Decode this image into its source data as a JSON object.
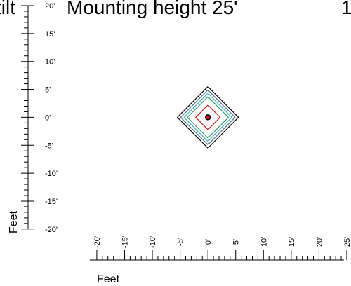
{
  "chart_data": {
    "type": "contour",
    "title_fragments": [
      "tilt",
      "Mounting height 25'",
      "1"
    ],
    "xlabel": "Feet",
    "ylabel": "Feet",
    "xlim": [
      -21,
      24.5
    ],
    "ylim": [
      -20.4,
      20.5
    ],
    "xticks": [
      {
        "value": -20,
        "label": "-20'"
      },
      {
        "value": -15,
        "label": "-15'"
      },
      {
        "value": -10,
        "label": "-10'"
      },
      {
        "value": -5,
        "label": "-5'"
      },
      {
        "value": 0,
        "label": "0'"
      },
      {
        "value": 5,
        "label": "5'"
      },
      {
        "value": 10,
        "label": "10'"
      },
      {
        "value": 15,
        "label": "15'"
      },
      {
        "value": 20,
        "label": "20'"
      },
      {
        "value": 25,
        "label": "25'"
      }
    ],
    "yticks": [
      {
        "value": 20,
        "label": "20'"
      },
      {
        "value": 15,
        "label": "15'"
      },
      {
        "value": 10,
        "label": "10'"
      },
      {
        "value": 5,
        "label": "5'"
      },
      {
        "value": 0,
        "label": "0'"
      },
      {
        "value": -5,
        "label": "-5'"
      },
      {
        "value": -10,
        "label": "-10'"
      },
      {
        "value": -15,
        "label": "-15'"
      },
      {
        "value": -20,
        "label": "-20'"
      }
    ],
    "contours": [
      {
        "color": "#000000",
        "radius": 5.5
      },
      {
        "color": "#5a6f80",
        "radius": 4.9
      },
      {
        "color": "#33b5c8",
        "radius": 4.3
      },
      {
        "color": "#3aa05a",
        "radius": 3.7
      },
      {
        "color": "#e01010",
        "radius": 2.2
      }
    ],
    "fixture": {
      "x": 0,
      "y": 0,
      "color": "#e01010"
    }
  }
}
